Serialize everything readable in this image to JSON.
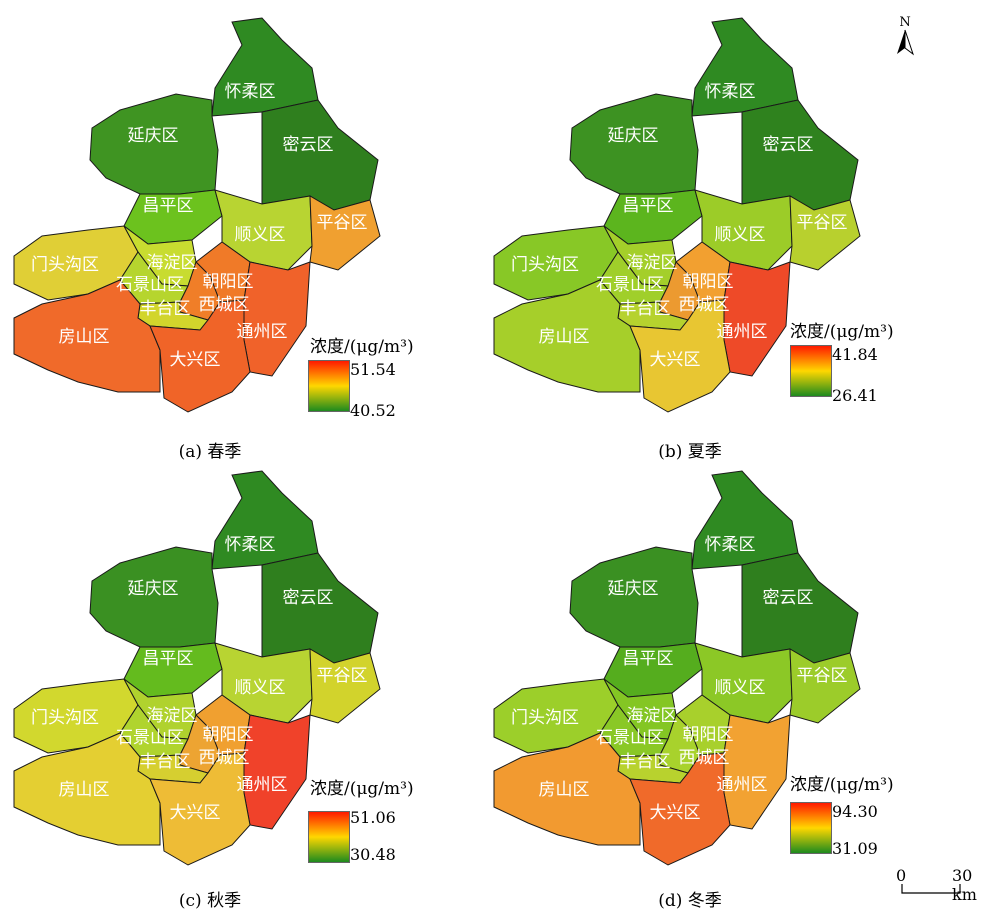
{
  "panels": [
    {
      "caption": "(a) 春季",
      "legend_title": "浓度/(μg/m³)",
      "max": "51.54",
      "min": "40.52"
    },
    {
      "caption": "(b) 夏季",
      "legend_title": "浓度/(μg/m³)",
      "max": "41.84",
      "min": "26.41"
    },
    {
      "caption": "(c) 秋季",
      "legend_title": "浓度/(μg/m³)",
      "max": "51.06",
      "min": "30.48"
    },
    {
      "caption": "(d) 冬季",
      "legend_title": "浓度/(μg/m³)",
      "max": "94.30",
      "min": "31.09"
    }
  ],
  "districts": [
    "怀柔区",
    "延庆区",
    "密云区",
    "昌平区",
    "顺义区",
    "平谷区",
    "门头沟区",
    "海淀区",
    "朝阳区",
    "石景山区",
    "西城区",
    "丰台区",
    "房山区",
    "通州区",
    "大兴区"
  ],
  "colors": {
    "high": "#ff1a00",
    "mid": "#ffd700",
    "low": "#1e8a1e",
    "boundary": "#1a1a1a"
  },
  "north_arrow": {
    "label": "N"
  },
  "scale_bar": {
    "start": "0",
    "end": "30 km"
  },
  "seasons": [
    {
      "fills": [
        "#2f8a22",
        "#3f9422",
        "#2f7f1e",
        "#6cc21e",
        "#b8d432",
        "#f0a030",
        "#e0cf36",
        "#c8dc30",
        "#f07a28",
        "#b6d52e",
        "#f07e28",
        "#d2d52c",
        "#f06a2a",
        "#f0622a",
        "#f06428"
      ]
    },
    {
      "fills": [
        "#2f8a22",
        "#3d9222",
        "#2f821e",
        "#5cb51e",
        "#9ccc28",
        "#b8d02e",
        "#88c826",
        "#a4cf2a",
        "#f2a030",
        "#a0cf2a",
        "#ec9a30",
        "#b6d22e",
        "#a6cf2a",
        "#ee4a28",
        "#e8c632"
      ]
    },
    {
      "fills": [
        "#2f8a22",
        "#3a9022",
        "#2f7f1e",
        "#64bb1e",
        "#b8d432",
        "#d2d32c",
        "#d2d82e",
        "#b0d22e",
        "#f0a030",
        "#b0d42e",
        "#eda432",
        "#d6cf30",
        "#e4cf32",
        "#f0422a",
        "#eebc36"
      ]
    },
    {
      "fills": [
        "#2f8a22",
        "#3a9022",
        "#2f7f1e",
        "#55ad1e",
        "#8cc826",
        "#9ccc2a",
        "#9ccf2a",
        "#84c624",
        "#a8d02c",
        "#8ac826",
        "#a8d22c",
        "#b8d22e",
        "#f29a30",
        "#f2a232",
        "#f06a2a"
      ]
    }
  ]
}
